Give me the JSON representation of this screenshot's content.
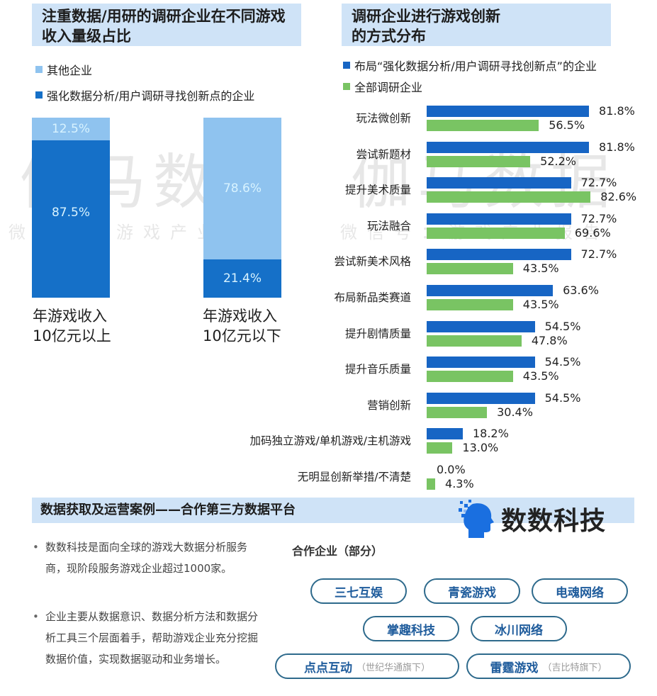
{
  "left": {
    "title": "注重数据/用研的调研企业在不同游戏收入量级占比",
    "legend": [
      {
        "label": "其他企业",
        "color": "#8fc3ef"
      },
      {
        "label": "强化数据分析/用户调研寻找创新点的企业",
        "color": "#1570c8"
      }
    ],
    "bars": [
      {
        "label_line1": "年游戏收入",
        "label_line2": "10亿元以上",
        "other": "12.5%",
        "focus": "87.5%"
      },
      {
        "label_line1": "年游戏收入",
        "label_line2": "10亿元以下",
        "other": "78.6%",
        "focus": "21.4%"
      }
    ]
  },
  "right": {
    "title_line1": "调研企业进行游戏创新",
    "title_line2": "的方式分布",
    "legend": [
      {
        "label": "布局“强化数据分析/用户调研寻找创新点”的企业",
        "color": "#1765c4"
      },
      {
        "label": "全部调研企业",
        "color": "#79c463"
      }
    ],
    "rows": [
      {
        "label": "玩法微创新",
        "blue": "81.8%",
        "green": "56.5%"
      },
      {
        "label": "尝试新题材",
        "blue": "81.8%",
        "green": "52.2%"
      },
      {
        "label": "提升美术质量",
        "blue": "72.7%",
        "green": "82.6%"
      },
      {
        "label": "玩法融合",
        "blue": "72.7%",
        "green": "69.6%"
      },
      {
        "label": "尝试新美术风格",
        "blue": "72.7%",
        "green": "43.5%"
      },
      {
        "label": "布局新品类赛道",
        "blue": "63.6%",
        "green": "43.5%"
      },
      {
        "label": "提升剧情质量",
        "blue": "54.5%",
        "green": "47.8%"
      },
      {
        "label": "提升音乐质量",
        "blue": "54.5%",
        "green": "43.5%"
      },
      {
        "label": "营销创新",
        "blue": "54.5%",
        "green": "30.4%"
      },
      {
        "label": "加码独立游戏/单机游戏/主机游戏",
        "blue": "18.2%",
        "green": "13.0%"
      },
      {
        "label": "无明显创新举措/不清楚",
        "blue": "0.0%",
        "green": "4.3%"
      }
    ]
  },
  "watermark": {
    "big": "伽马数据",
    "small": "微信号：游戏产业报告"
  },
  "bottom": {
    "title": "数据获取及运营案例——合作第三方数据平台",
    "brand": "数数科技",
    "bullets": [
      "数数科技是面向全球的游戏大数据分析服务商，现阶段服务游戏企业超过1000家。",
      "企业主要从数据意识、数据分析方法和数据分析工具三个层面着手，帮助游戏企业充分挖掘数据价值，实现数据驱动和业务增长。"
    ],
    "partners_title": "合作企业（部分）",
    "partners": [
      {
        "name": "三七互娱",
        "sub": ""
      },
      {
        "name": "青瓷游戏",
        "sub": ""
      },
      {
        "name": "电魂网络",
        "sub": ""
      },
      {
        "name": "掌趣科技",
        "sub": ""
      },
      {
        "name": "冰川网络",
        "sub": ""
      },
      {
        "name": "点点互动",
        "sub": "（世纪华通旗下）"
      },
      {
        "name": "雷霆游戏",
        "sub": "（吉比特旗下）"
      }
    ]
  },
  "chart_data": [
    {
      "type": "bar",
      "stacked": true,
      "title": "注重数据/用研的调研企业在不同游戏收入量级占比",
      "categories": [
        "年游戏收入10亿元以上",
        "年游戏收入10亿元以下"
      ],
      "series": [
        {
          "name": "强化数据分析/用户调研寻找创新点的企业",
          "values": [
            87.5,
            21.4
          ]
        },
        {
          "name": "其他企业",
          "values": [
            12.5,
            78.6
          ]
        }
      ],
      "xlabel": "",
      "ylabel": "",
      "ylim": [
        0,
        100
      ],
      "legend_position": "top"
    },
    {
      "type": "bar",
      "orientation": "horizontal",
      "title": "调研企业进行游戏创新的方式分布",
      "categories": [
        "玩法微创新",
        "尝试新题材",
        "提升美术质量",
        "玩法融合",
        "尝试新美术风格",
        "布局新品类赛道",
        "提升剧情质量",
        "提升音乐质量",
        "营销创新",
        "加码独立游戏/单机游戏/主机游戏",
        "无明显创新举措/不清楚"
      ],
      "series": [
        {
          "name": "布局“强化数据分析/用户调研寻找创新点”的企业",
          "values": [
            81.8,
            81.8,
            72.7,
            72.7,
            72.7,
            63.6,
            54.5,
            54.5,
            54.5,
            18.2,
            0.0
          ]
        },
        {
          "name": "全部调研企业",
          "values": [
            56.5,
            52.2,
            82.6,
            69.6,
            43.5,
            43.5,
            47.8,
            43.5,
            30.4,
            13.0,
            4.3
          ]
        }
      ],
      "xlabel": "",
      "ylabel": "",
      "xlim": [
        0,
        100
      ],
      "grid": false,
      "legend_position": "top"
    }
  ]
}
